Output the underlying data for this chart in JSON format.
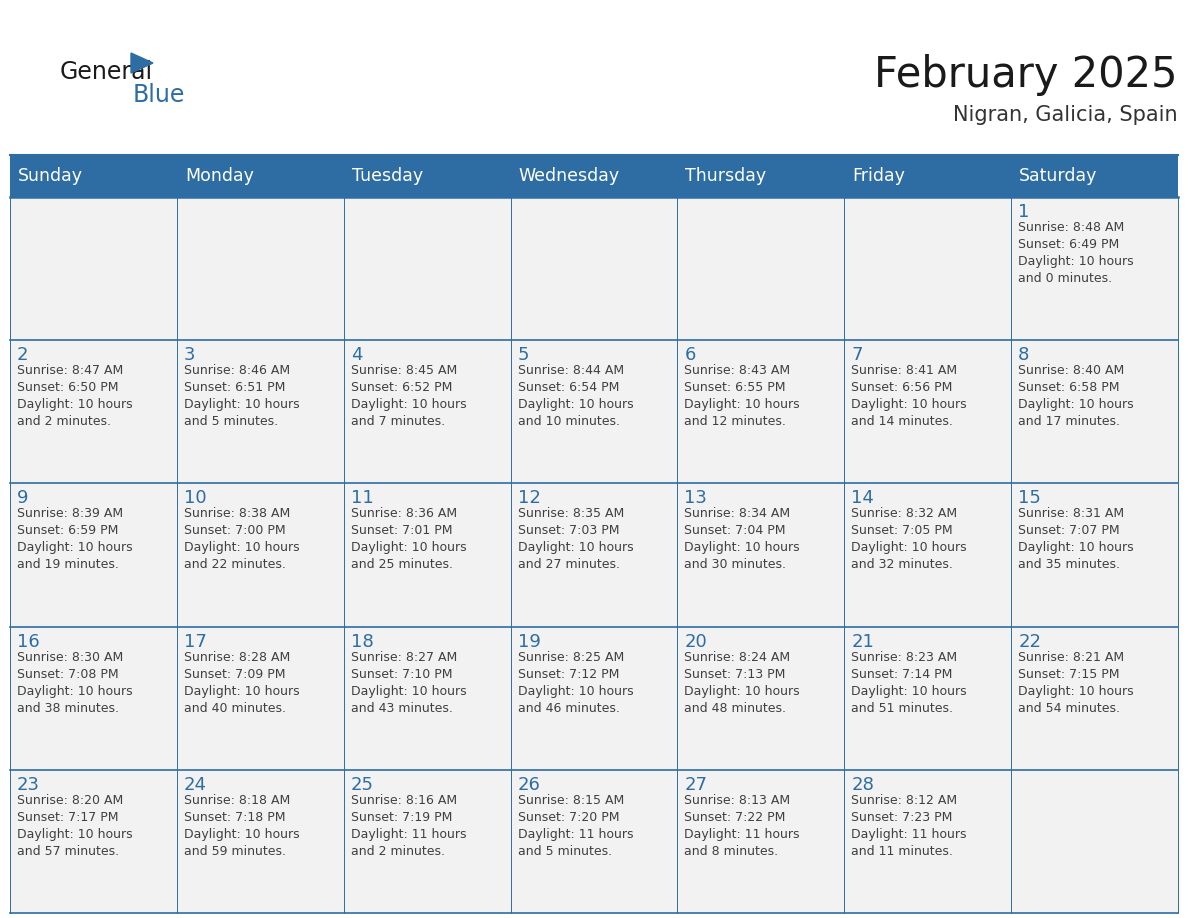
{
  "title": "February 2025",
  "subtitle": "Nigran, Galicia, Spain",
  "header_bg": "#2E6DA4",
  "header_text": "#FFFFFF",
  "cell_bg": "#F2F2F2",
  "border_color": "#2E6DA4",
  "day_headers": [
    "Sunday",
    "Monday",
    "Tuesday",
    "Wednesday",
    "Thursday",
    "Friday",
    "Saturday"
  ],
  "title_color": "#1a1a1a",
  "subtitle_color": "#333333",
  "day_num_color": "#2E6DA4",
  "cell_text_color": "#404040",
  "logo_color1": "#1a1a1a",
  "logo_color2": "#2E6DA4",
  "logo_triangle_color": "#2E6DA4",
  "calendar": [
    [
      null,
      null,
      null,
      null,
      null,
      null,
      {
        "day": 1,
        "sunrise": "8:48 AM",
        "sunset": "6:49 PM",
        "daylight": "10 hours",
        "daylight2": "and 0 minutes."
      }
    ],
    [
      {
        "day": 2,
        "sunrise": "8:47 AM",
        "sunset": "6:50 PM",
        "daylight": "10 hours",
        "daylight2": "and 2 minutes."
      },
      {
        "day": 3,
        "sunrise": "8:46 AM",
        "sunset": "6:51 PM",
        "daylight": "10 hours",
        "daylight2": "and 5 minutes."
      },
      {
        "day": 4,
        "sunrise": "8:45 AM",
        "sunset": "6:52 PM",
        "daylight": "10 hours",
        "daylight2": "and 7 minutes."
      },
      {
        "day": 5,
        "sunrise": "8:44 AM",
        "sunset": "6:54 PM",
        "daylight": "10 hours",
        "daylight2": "and 10 minutes."
      },
      {
        "day": 6,
        "sunrise": "8:43 AM",
        "sunset": "6:55 PM",
        "daylight": "10 hours",
        "daylight2": "and 12 minutes."
      },
      {
        "day": 7,
        "sunrise": "8:41 AM",
        "sunset": "6:56 PM",
        "daylight": "10 hours",
        "daylight2": "and 14 minutes."
      },
      {
        "day": 8,
        "sunrise": "8:40 AM",
        "sunset": "6:58 PM",
        "daylight": "10 hours",
        "daylight2": "and 17 minutes."
      }
    ],
    [
      {
        "day": 9,
        "sunrise": "8:39 AM",
        "sunset": "6:59 PM",
        "daylight": "10 hours",
        "daylight2": "and 19 minutes."
      },
      {
        "day": 10,
        "sunrise": "8:38 AM",
        "sunset": "7:00 PM",
        "daylight": "10 hours",
        "daylight2": "and 22 minutes."
      },
      {
        "day": 11,
        "sunrise": "8:36 AM",
        "sunset": "7:01 PM",
        "daylight": "10 hours",
        "daylight2": "and 25 minutes."
      },
      {
        "day": 12,
        "sunrise": "8:35 AM",
        "sunset": "7:03 PM",
        "daylight": "10 hours",
        "daylight2": "and 27 minutes."
      },
      {
        "day": 13,
        "sunrise": "8:34 AM",
        "sunset": "7:04 PM",
        "daylight": "10 hours",
        "daylight2": "and 30 minutes."
      },
      {
        "day": 14,
        "sunrise": "8:32 AM",
        "sunset": "7:05 PM",
        "daylight": "10 hours",
        "daylight2": "and 32 minutes."
      },
      {
        "day": 15,
        "sunrise": "8:31 AM",
        "sunset": "7:07 PM",
        "daylight": "10 hours",
        "daylight2": "and 35 minutes."
      }
    ],
    [
      {
        "day": 16,
        "sunrise": "8:30 AM",
        "sunset": "7:08 PM",
        "daylight": "10 hours",
        "daylight2": "and 38 minutes."
      },
      {
        "day": 17,
        "sunrise": "8:28 AM",
        "sunset": "7:09 PM",
        "daylight": "10 hours",
        "daylight2": "and 40 minutes."
      },
      {
        "day": 18,
        "sunrise": "8:27 AM",
        "sunset": "7:10 PM",
        "daylight": "10 hours",
        "daylight2": "and 43 minutes."
      },
      {
        "day": 19,
        "sunrise": "8:25 AM",
        "sunset": "7:12 PM",
        "daylight": "10 hours",
        "daylight2": "and 46 minutes."
      },
      {
        "day": 20,
        "sunrise": "8:24 AM",
        "sunset": "7:13 PM",
        "daylight": "10 hours",
        "daylight2": "and 48 minutes."
      },
      {
        "day": 21,
        "sunrise": "8:23 AM",
        "sunset": "7:14 PM",
        "daylight": "10 hours",
        "daylight2": "and 51 minutes."
      },
      {
        "day": 22,
        "sunrise": "8:21 AM",
        "sunset": "7:15 PM",
        "daylight": "10 hours",
        "daylight2": "and 54 minutes."
      }
    ],
    [
      {
        "day": 23,
        "sunrise": "8:20 AM",
        "sunset": "7:17 PM",
        "daylight": "10 hours",
        "daylight2": "and 57 minutes."
      },
      {
        "day": 24,
        "sunrise": "8:18 AM",
        "sunset": "7:18 PM",
        "daylight": "10 hours",
        "daylight2": "and 59 minutes."
      },
      {
        "day": 25,
        "sunrise": "8:16 AM",
        "sunset": "7:19 PM",
        "daylight": "11 hours",
        "daylight2": "and 2 minutes."
      },
      {
        "day": 26,
        "sunrise": "8:15 AM",
        "sunset": "7:20 PM",
        "daylight": "11 hours",
        "daylight2": "and 5 minutes."
      },
      {
        "day": 27,
        "sunrise": "8:13 AM",
        "sunset": "7:22 PM",
        "daylight": "11 hours",
        "daylight2": "and 8 minutes."
      },
      {
        "day": 28,
        "sunrise": "8:12 AM",
        "sunset": "7:23 PM",
        "daylight": "11 hours",
        "daylight2": "and 11 minutes."
      },
      null
    ]
  ]
}
